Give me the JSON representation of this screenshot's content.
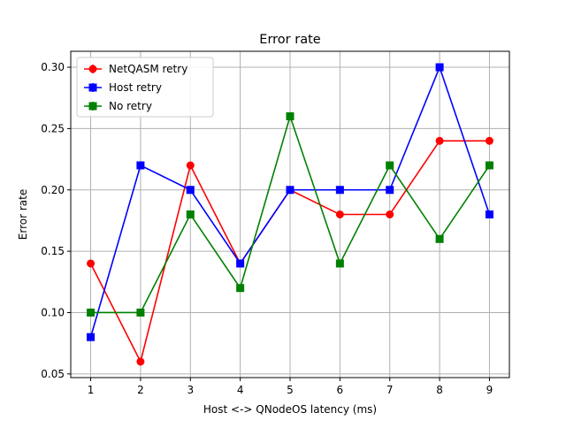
{
  "chart_data": {
    "type": "line",
    "title": "Error rate",
    "xlabel": "Host <-> QNodeOS latency (ms)",
    "ylabel": "Error rate",
    "x": [
      1,
      2,
      3,
      4,
      5,
      6,
      7,
      8,
      9
    ],
    "xticks": [
      "1",
      "2",
      "3",
      "4",
      "5",
      "6",
      "7",
      "8",
      "9"
    ],
    "yticks": [
      "0.05",
      "0.10",
      "0.15",
      "0.20",
      "0.25",
      "0.30"
    ],
    "xlim": [
      0.6,
      9.4
    ],
    "ylim": [
      0.047,
      0.313
    ],
    "grid": true,
    "legend_position": "upper-left",
    "series": [
      {
        "name": "NetQASM retry",
        "color": "#ff0000",
        "marker": "circle",
        "values": [
          0.14,
          0.06,
          0.22,
          0.14,
          0.2,
          0.18,
          0.18,
          0.24,
          0.24
        ]
      },
      {
        "name": "Host retry",
        "color": "#0000ff",
        "marker": "square",
        "values": [
          0.08,
          0.22,
          0.2,
          0.14,
          0.2,
          0.2,
          0.2,
          0.3,
          0.18
        ]
      },
      {
        "name": "No retry",
        "color": "#008000",
        "marker": "square",
        "values": [
          0.1,
          0.1,
          0.18,
          0.12,
          0.26,
          0.14,
          0.22,
          0.16,
          0.22
        ]
      }
    ]
  }
}
